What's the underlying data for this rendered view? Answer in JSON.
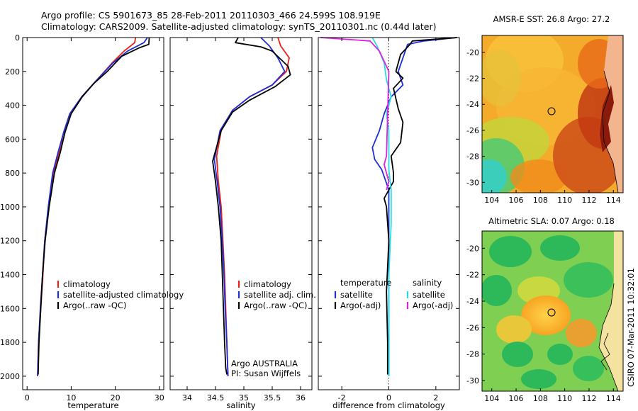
{
  "figure": {
    "title_line1": "Argo profile: CS 5901673_85 28-Feb-2011 20110303_466 24.599S 108.919E",
    "title_line2": "Climatology: CARS2009. Satellite-adjusted climatology: synTS_20110301.nc (0.44d later)",
    "side_stamp": "CSIRO 07-Mar-2011 10:32:01",
    "colors": {
      "climatology": "#e8201a",
      "satellite": "#1f2ed6",
      "argo": "#000000",
      "satellite_sal": "#22e0e6",
      "argo_sal": "#e020e0",
      "marker": "#000000"
    }
  },
  "chart_data": [
    {
      "type": "line",
      "id": "temperature_profile",
      "xlabel": "temperature",
      "ylabel": "",
      "xlim": [
        -1,
        31
      ],
      "ylim": [
        2080,
        0
      ],
      "y_inverted": true,
      "xticks": [
        0,
        10,
        20,
        30
      ],
      "yticks": [
        0,
        200,
        400,
        600,
        800,
        1000,
        1200,
        1400,
        1600,
        1800,
        2000
      ],
      "legend": {
        "position": "lower-middle",
        "entries": [
          "climatology",
          "satellite-adjusted climatology",
          "Argo(..raw -QC)"
        ]
      },
      "series": [
        {
          "name": "climatology",
          "color": "#e8201a",
          "x": [
            24.6,
            24.4,
            22.0,
            19.3,
            15.5,
            12.4,
            9.7,
            8.3,
            7.2,
            6.0,
            4.9,
            4.0,
            3.6,
            3.1,
            2.6,
            2.4
          ],
          "y": [
            0,
            30,
            80,
            150,
            260,
            350,
            450,
            560,
            680,
            800,
            1000,
            1200,
            1400,
            1600,
            1800,
            2000
          ]
        },
        {
          "name": "satellite-adjusted climatology",
          "color": "#1f2ed6",
          "x": [
            27.3,
            26.5,
            22.8,
            19.5,
            15.5,
            12.4,
            9.7,
            8.3,
            7.0,
            5.8,
            4.8,
            4.0,
            3.5,
            3.0,
            2.6,
            2.4
          ],
          "y": [
            0,
            30,
            80,
            150,
            260,
            350,
            450,
            560,
            680,
            800,
            1000,
            1200,
            1400,
            1600,
            1800,
            2000
          ]
        },
        {
          "name": "Argo(..raw -QC)",
          "color": "#000000",
          "x": [
            27.7,
            27.6,
            25.5,
            21.5,
            18.2,
            15.2,
            12.5,
            10.0,
            8.6,
            7.5,
            6.2,
            5.0,
            4.1,
            3.5,
            3.1,
            2.7,
            2.5
          ],
          "y": [
            0,
            40,
            60,
            110,
            200,
            270,
            350,
            450,
            560,
            680,
            800,
            1000,
            1200,
            1400,
            1600,
            1800,
            1990
          ]
        }
      ]
    },
    {
      "type": "line",
      "id": "salinity_profile",
      "xlabel": "salinity",
      "ylabel": "",
      "xlim": [
        33.7,
        36.2
      ],
      "ylim": [
        2080,
        0
      ],
      "y_inverted": true,
      "xticks": [
        34,
        34.5,
        35,
        35.5,
        36
      ],
      "yticks": [
        0,
        200,
        400,
        600,
        800,
        1000,
        1200,
        1400,
        1600,
        1800,
        2000
      ],
      "legend": {
        "position": "lower-right",
        "entries": [
          "climatology",
          "satellite adj. clim.",
          "Argo(..raw -QC)"
        ]
      },
      "annotation": {
        "line1": "Argo AUSTRALIA",
        "line2": "PI: Susan Wijffels"
      },
      "series": [
        {
          "name": "climatology",
          "color": "#e8201a",
          "x": [
            35.6,
            35.65,
            35.8,
            35.75,
            35.5,
            35.1,
            34.8,
            34.6,
            34.52,
            34.55,
            34.6,
            34.63,
            34.66,
            34.68,
            34.7,
            34.72
          ],
          "y": [
            0,
            50,
            120,
            200,
            280,
            350,
            430,
            550,
            700,
            850,
            1000,
            1200,
            1400,
            1600,
            1800,
            2000
          ]
        },
        {
          "name": "satellite adj. clim.",
          "color": "#1f2ed6",
          "x": [
            35.3,
            35.45,
            35.6,
            35.72,
            35.5,
            35.1,
            34.8,
            34.58,
            34.48,
            34.53,
            34.58,
            34.62,
            34.65,
            34.67,
            34.7,
            34.72
          ],
          "y": [
            0,
            50,
            120,
            200,
            280,
            350,
            430,
            550,
            720,
            850,
            1000,
            1200,
            1400,
            1600,
            1800,
            2000
          ]
        },
        {
          "name": "Argo(..raw -QC)",
          "color": "#000000",
          "x": [
            34.9,
            34.85,
            35.3,
            35.5,
            35.78,
            35.82,
            35.55,
            35.1,
            34.8,
            34.6,
            34.45,
            34.5,
            34.55,
            34.6,
            34.62,
            34.64,
            34.66,
            34.68,
            34.7
          ],
          "y": [
            0,
            30,
            55,
            80,
            170,
            220,
            290,
            370,
            440,
            550,
            730,
            850,
            1000,
            1200,
            1400,
            1600,
            1800,
            1950,
            1990
          ]
        }
      ]
    },
    {
      "type": "line",
      "id": "difference_profile",
      "xlabel": "difference from climatology",
      "ylabel": "",
      "xlim": [
        -3,
        3
      ],
      "ylim": [
        2080,
        0
      ],
      "y_inverted": true,
      "xticks": [
        -2,
        0,
        2
      ],
      "yticks": [
        0,
        200,
        400,
        600,
        800,
        1000,
        1200,
        1400,
        1600,
        1800,
        2000
      ],
      "legend": {
        "position": "lower-center",
        "col1_title": "temperature",
        "col1_entries": [
          "satellite",
          "Argo(-adj)"
        ],
        "col2_title": "salinity",
        "col2_entries": [
          "satellite",
          "Argo(-adj)"
        ]
      },
      "series": [
        {
          "name": "temperature satellite",
          "color": "#1f2ed6",
          "x": [
            2.9,
            1.5,
            0.8,
            0.6,
            0.4,
            0.6,
            0.1,
            -0.2,
            -0.4,
            -0.7,
            -0.6,
            -0.3,
            0.0,
            0.0,
            0.0,
            0.0
          ],
          "y": [
            0,
            20,
            40,
            120,
            200,
            280,
            350,
            450,
            550,
            650,
            720,
            780,
            900,
            1200,
            1600,
            2000
          ]
        },
        {
          "name": "temperature Argo(-adj)",
          "color": "#000000",
          "x": [
            2.9,
            1.0,
            0.9,
            0.5,
            0.3,
            0.6,
            0.2,
            0.4,
            0.6,
            0.5,
            0.1,
            0.2,
            0.2,
            0.0,
            -0.2,
            -0.1,
            0.0,
            -0.1,
            -0.05,
            -0.05
          ],
          "y": [
            0,
            20,
            40,
            100,
            200,
            240,
            300,
            420,
            500,
            620,
            700,
            800,
            850,
            900,
            950,
            1000,
            1200,
            1500,
            1800,
            1990
          ]
        },
        {
          "name": "salinity satellite",
          "color": "#22e0e6",
          "x": [
            -0.7,
            -0.5,
            -0.2,
            -0.1,
            0.1,
            -0.1,
            0.0,
            0.0,
            0.0,
            0.1,
            0.1,
            0.0,
            0.0,
            0.0
          ],
          "y": [
            0,
            50,
            150,
            250,
            350,
            450,
            550,
            650,
            780,
            900,
            1100,
            1400,
            1700,
            2000
          ]
        },
        {
          "name": "salinity Argo(-adj)",
          "color": "#e020e0",
          "x": [
            -2.9,
            -0.8,
            -0.4,
            0.0,
            -0.1,
            -0.2,
            -0.1,
            0.0,
            -0.1
          ],
          "y": [
            0,
            20,
            80,
            200,
            700,
            750,
            800,
            850,
            900
          ]
        }
      ]
    },
    {
      "type": "heatmap",
      "id": "sst_map",
      "title": "AMSR-E SST: 26.8  Argo: 27.2",
      "xlim": [
        103.2,
        114.8
      ],
      "ylim": [
        -30.8,
        -18.7
      ],
      "xticks": [
        104,
        106,
        108,
        110,
        112,
        114
      ],
      "yticks": [
        -20,
        -22,
        -24,
        -26,
        -28,
        -30
      ],
      "marker": {
        "lon": 108.919,
        "lat": -24.599
      }
    },
    {
      "type": "heatmap",
      "id": "sla_map",
      "title": "Altimetric SLA: 0.07  Argo: 0.18",
      "xlim": [
        103.2,
        114.8
      ],
      "ylim": [
        -30.8,
        -18.7
      ],
      "xticks": [
        104,
        106,
        108,
        110,
        112,
        114
      ],
      "yticks": [
        -20,
        -22,
        -24,
        -26,
        -28,
        -30
      ],
      "marker": {
        "lon": 108.919,
        "lat": -24.599
      }
    }
  ]
}
